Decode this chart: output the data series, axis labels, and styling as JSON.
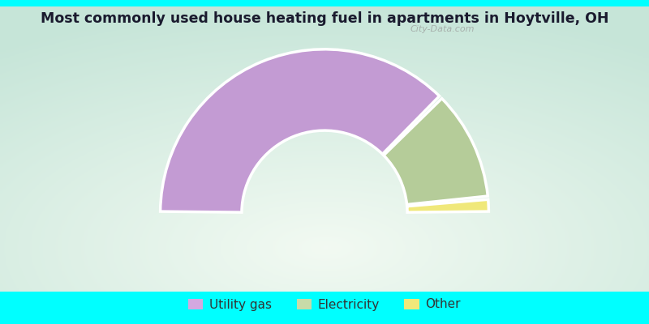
{
  "title": "Most commonly used house heating fuel in apartments in Hoytville, OH",
  "title_color": "#1a1a2e",
  "background_color": "#00ffff",
  "slices": [
    {
      "label": "Utility gas",
      "value": 75.0,
      "color": "#c39bd3"
    },
    {
      "label": "Electricity",
      "value": 22.0,
      "color": "#b5cc99"
    },
    {
      "label": "Other",
      "value": 3.0,
      "color": "#f0e87a"
    }
  ],
  "legend_colors": [
    "#d4a8e0",
    "#c8dba8",
    "#f0e87a"
  ],
  "legend_labels": [
    "Utility gas",
    "Electricity",
    "Other"
  ],
  "watermark": "City-Data.com",
  "grad_colors": [
    "#d0e8d0",
    "#e8f5e8",
    "#f5faf5"
  ],
  "chart_area": [
    0.0,
    0.1,
    1.0,
    0.88
  ]
}
